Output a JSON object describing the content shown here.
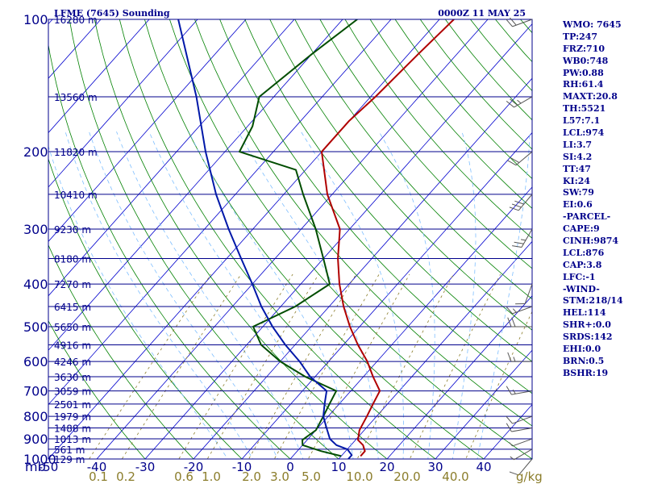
{
  "header": {
    "station": "LFME (7645) Sounding",
    "time": "0000Z 11 MAY 25"
  },
  "indices": [
    "WMO: 7645",
    "TP:247",
    "FRZ:710",
    "WB0:748",
    "PW:0.88",
    "RH:61.4",
    "MAXT:20.8",
    "TH:5521",
    "L57:7.1",
    "LCL:974",
    "LI:3.7",
    "SI:4.2",
    "TT:47",
    "KI:24",
    "SW:79",
    "EI:0.6",
    "-PARCEL-",
    "CAPE:9",
    "CINH:9874",
    "LCL:876",
    "CAP:3.8",
    "LFC:-1",
    "-WIND-",
    "STM:218/14",
    "HEL:114",
    "SHR+:0.0",
    "SRDS:142",
    "EHI:0.0",
    "BRN:0.5",
    "BSHR:19"
  ],
  "colors": {
    "isobar": "#00008b",
    "isotherm": "#0000cd",
    "dry_adiabat": "#008000",
    "moist_adiabat": "#7fbfff",
    "mixing_ratio": "#8b7d2b",
    "temperature": "#b00000",
    "dewpoint": "#004d00",
    "parcel": "#0018a8",
    "wind_barb": "#555555"
  },
  "chart_data": {
    "type": "skew-t",
    "title": "LFME (7645) Sounding",
    "subtitle": "0000Z 11 MAY 25",
    "xlabel": "",
    "ylabel": "mb",
    "y_scale": "log",
    "ylim": [
      1000,
      100
    ],
    "xlim": [
      -50,
      50
    ],
    "pressure_labels": [
      "100",
      "200",
      "300",
      "400",
      "500",
      "600",
      "700",
      "800",
      "900",
      "1000"
    ],
    "pressure_ticks": [
      100,
      200,
      300,
      400,
      500,
      600,
      700,
      800,
      900,
      1000
    ],
    "temperature_ticks": [
      -50,
      -40,
      -30,
      -20,
      -10,
      0,
      10,
      20,
      30,
      40
    ],
    "temperature_labels": [
      "-50",
      "-40",
      "-30",
      "-20",
      "-10",
      "0",
      "10",
      "20",
      "30",
      "40"
    ],
    "mixing_ratio_labels": [
      "0.1",
      "0.2",
      "0.6",
      "1.0",
      "2.0",
      "3.0",
      "5.0",
      "10.0",
      "20.0",
      "40.0"
    ],
    "mixing_ratio_unit": "g/kg",
    "heights": [
      {
        "p": 100,
        "label": "16280 m"
      },
      {
        "p": 150,
        "label": "13560 m"
      },
      {
        "p": 200,
        "label": "11820 m"
      },
      {
        "p": 250,
        "label": "10410 m"
      },
      {
        "p": 300,
        "label": "9230 m"
      },
      {
        "p": 350,
        "label": "8180 m"
      },
      {
        "p": 400,
        "label": "7270 m"
      },
      {
        "p": 450,
        "label": "6415 m"
      },
      {
        "p": 500,
        "label": "5650 m"
      },
      {
        "p": 550,
        "label": "4916 m"
      },
      {
        "p": 600,
        "label": "4246 m"
      },
      {
        "p": 650,
        "label": "3630 m"
      },
      {
        "p": 700,
        "label": "3059 m"
      },
      {
        "p": 750,
        "label": "2501 m"
      },
      {
        "p": 800,
        "label": "1979 m"
      },
      {
        "p": 850,
        "label": "1488 m"
      },
      {
        "p": 900,
        "label": "1013 m"
      },
      {
        "p": 950,
        "label": "561 m"
      },
      {
        "p": 1000,
        "label": "129 m"
      }
    ],
    "series": [
      {
        "key": "temperature",
        "points": [
          [
            985,
            14
          ],
          [
            960,
            14
          ],
          [
            930,
            12.5
          ],
          [
            905,
            10.5
          ],
          [
            860,
            9
          ],
          [
            800,
            8
          ],
          [
            750,
            7
          ],
          [
            700,
            6
          ],
          [
            650,
            2
          ],
          [
            600,
            -2
          ],
          [
            550,
            -7
          ],
          [
            500,
            -12
          ],
          [
            450,
            -17
          ],
          [
            400,
            -22
          ],
          [
            350,
            -27
          ],
          [
            300,
            -32
          ],
          [
            250,
            -41
          ],
          [
            200,
            -50
          ],
          [
            170,
            -50
          ],
          [
            150,
            -49
          ],
          [
            120,
            -48
          ],
          [
            100,
            -47
          ]
        ]
      },
      {
        "key": "dewpoint",
        "points": [
          [
            985,
            10
          ],
          [
            960,
            5
          ],
          [
            930,
            0
          ],
          [
            905,
            -1
          ],
          [
            860,
            0
          ],
          [
            800,
            -1
          ],
          [
            750,
            -2
          ],
          [
            700,
            -3
          ],
          [
            650,
            -12
          ],
          [
            600,
            -20
          ],
          [
            550,
            -27
          ],
          [
            500,
            -32
          ],
          [
            450,
            -27
          ],
          [
            400,
            -24
          ],
          [
            350,
            -30
          ],
          [
            300,
            -37
          ],
          [
            250,
            -46
          ],
          [
            220,
            -52
          ],
          [
            200,
            -67
          ],
          [
            175,
            -69
          ],
          [
            150,
            -73
          ],
          [
            120,
            -70
          ],
          [
            100,
            -67
          ]
        ]
      },
      {
        "key": "parcel",
        "points": [
          [
            1000,
            12
          ],
          [
            980,
            12
          ],
          [
            950,
            10
          ],
          [
            930,
            7
          ],
          [
            900,
            4.5
          ],
          [
            850,
            1.8
          ],
          [
            800,
            -1
          ],
          [
            750,
            -3
          ],
          [
            700,
            -5
          ],
          [
            650,
            -11
          ],
          [
            600,
            -16
          ],
          [
            550,
            -22
          ],
          [
            500,
            -28
          ],
          [
            450,
            -34
          ],
          [
            400,
            -40
          ],
          [
            350,
            -47
          ],
          [
            300,
            -55
          ],
          [
            250,
            -64
          ],
          [
            200,
            -74
          ],
          [
            150,
            -86
          ],
          [
            100,
            -104
          ]
        ]
      }
    ],
    "wind_barbs": [
      {
        "p": 1000,
        "dir": 220,
        "spd": 10
      },
      {
        "p": 950,
        "dir": 240,
        "spd": 5
      },
      {
        "p": 900,
        "dir": 250,
        "spd": 5
      },
      {
        "p": 850,
        "dir": 260,
        "spd": 10
      },
      {
        "p": 800,
        "dir": 250,
        "spd": 10
      },
      {
        "p": 700,
        "dir": 260,
        "spd": 15
      },
      {
        "p": 600,
        "dir": 270,
        "spd": 15
      },
      {
        "p": 500,
        "dir": 270,
        "spd": 20
      },
      {
        "p": 450,
        "dir": 250,
        "spd": 15
      },
      {
        "p": 400,
        "dir": 200,
        "spd": 10
      },
      {
        "p": 300,
        "dir": 210,
        "spd": 25
      },
      {
        "p": 250,
        "dir": 220,
        "spd": 30
      },
      {
        "p": 200,
        "dir": 230,
        "spd": 20
      },
      {
        "p": 150,
        "dir": 240,
        "spd": 25
      },
      {
        "p": 100,
        "dir": 250,
        "spd": 20
      }
    ]
  }
}
